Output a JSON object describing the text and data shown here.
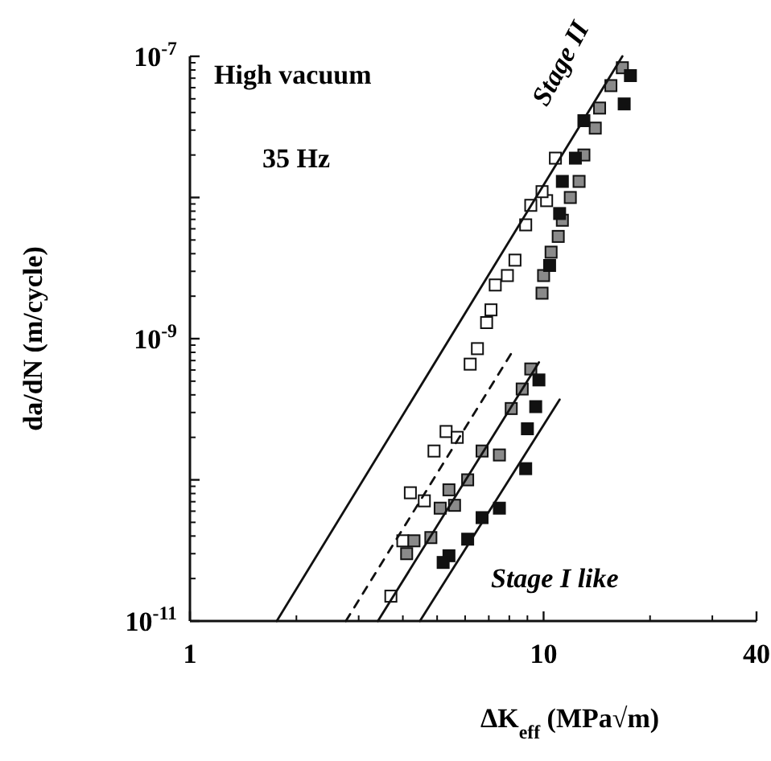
{
  "chart_data": {
    "type": "scatter",
    "xlabel": "ΔK$_{eff}$  (MPa√m)",
    "ylabel": "da/dN  (m/cycle)",
    "annotations": [
      "High vacuum",
      "35 Hz",
      "Stage II",
      "Stage I like"
    ],
    "log": "xy",
    "xlim": [
      1,
      40
    ],
    "ylim": [
      1e-11,
      1e-07
    ],
    "xticks": [
      1,
      10,
      40
    ],
    "yticks": [
      {
        "value": 1e-11,
        "label": "10$^{-11}$"
      },
      {
        "value": 1e-10,
        "label": null
      },
      {
        "value": 1e-09,
        "label": "10$^{-9}$"
      },
      {
        "value": 1e-08,
        "label": null
      },
      {
        "value": 1e-07,
        "label": "10$^{-7}$"
      }
    ],
    "grid": false,
    "marker": "square",
    "series": [
      {
        "color": "#ffffff",
        "x": [
          10.8,
          10.2,
          9.9,
          9.2,
          8.9,
          8.3,
          7.9,
          7.3,
          7.1,
          6.9,
          6.5,
          6.2,
          5.3,
          5.7,
          4.9,
          4.2,
          4.6,
          4.0,
          3.7
        ],
        "values": [
          1.9e-08,
          9.5e-09,
          1.1e-08,
          8.8e-09,
          6.4e-09,
          3.6e-09,
          2.8e-09,
          2.4e-09,
          1.6e-09,
          1.3e-09,
          8.5e-10,
          6.6e-10,
          2.2e-10,
          2e-10,
          1.6e-10,
          8.1e-11,
          7.1e-11,
          3.7e-11,
          1.5e-11
        ]
      },
      {
        "color": "#8a8a8a",
        "x": [
          16.7,
          15.5,
          14.4,
          14.0,
          13.0,
          12.6,
          11.9,
          11.3,
          11.0,
          10.5,
          10.0,
          9.9,
          9.2,
          8.7,
          8.1,
          6.7,
          7.5,
          6.1,
          5.4,
          5.6,
          5.1,
          4.8,
          4.3,
          4.1
        ],
        "values": [
          8.3e-08,
          6.2e-08,
          4.3e-08,
          3.1e-08,
          2e-08,
          1.3e-08,
          1e-08,
          6.9e-09,
          5.3e-09,
          4.1e-09,
          2.8e-09,
          2.1e-09,
          6.1e-10,
          4.4e-10,
          3.2e-10,
          1.6e-10,
          1.5e-10,
          1e-10,
          8.5e-11,
          6.6e-11,
          6.3e-11,
          3.9e-11,
          3.7e-11,
          3e-11
        ]
      },
      {
        "color": "#111111",
        "x": [
          17.6,
          16.9,
          13.0,
          12.3,
          11.3,
          11.1,
          10.4,
          9.7,
          9.5,
          9.0,
          8.9,
          7.5,
          6.7,
          6.1,
          5.4,
          5.2
        ],
        "values": [
          7.3e-08,
          4.6e-08,
          3.5e-08,
          1.9e-08,
          1.3e-08,
          7.7e-09,
          3.3e-09,
          5.1e-10,
          3.3e-10,
          2.3e-10,
          1.2e-10,
          6.3e-11,
          5.4e-11,
          3.8e-11,
          2.9e-11,
          2.6e-11
        ]
      },
      {
        "type": "line",
        "color": "#111111",
        "line_style": "solid",
        "marker": "none",
        "x": [
          1.76,
          16.7
        ],
        "values": [
          1e-11,
          1e-07
        ]
      },
      {
        "type": "line",
        "color": "#111111",
        "line_style": "dashed",
        "marker": "none",
        "x": [
          2.76,
          8.26
        ],
        "values": [
          1e-11,
          8.5e-10
        ]
      },
      {
        "type": "line",
        "color": "#111111",
        "line_style": "solid",
        "marker": "none",
        "x": [
          3.4,
          9.7
        ],
        "values": [
          1e-11,
          6.8e-10
        ]
      },
      {
        "type": "line",
        "color": "#111111",
        "line_style": "solid",
        "marker": "none",
        "x": [
          4.47,
          11.1
        ],
        "values": [
          1e-11,
          3.7e-10
        ]
      }
    ]
  }
}
